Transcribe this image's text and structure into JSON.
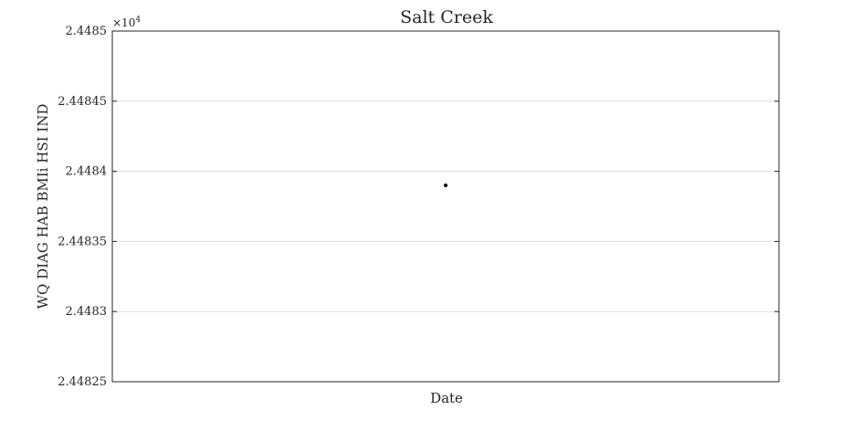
{
  "chart_data": {
    "type": "scatter",
    "title": "Salt Creek",
    "xlabel": "Date",
    "ylabel": "WQ DIAG HAB BMIi HSI IND",
    "y_multiplier_base": "×10",
    "y_multiplier_exp": "4",
    "ylim": [
      2.44825,
      2.4485
    ],
    "yticks": [
      2.44825,
      2.4483,
      2.44835,
      2.4484,
      2.44845,
      2.4485
    ],
    "ytick_labels": [
      "2.44825",
      "2.4483",
      "2.44835",
      "2.4484",
      "2.44845",
      "2.4485"
    ],
    "x_position_fraction": 0.5,
    "points": [
      {
        "y": 2.44839
      }
    ],
    "grid": "horizontal",
    "colors": {
      "marker": "#000000",
      "grid": "#dfdfdf",
      "axes": "#262626"
    }
  }
}
